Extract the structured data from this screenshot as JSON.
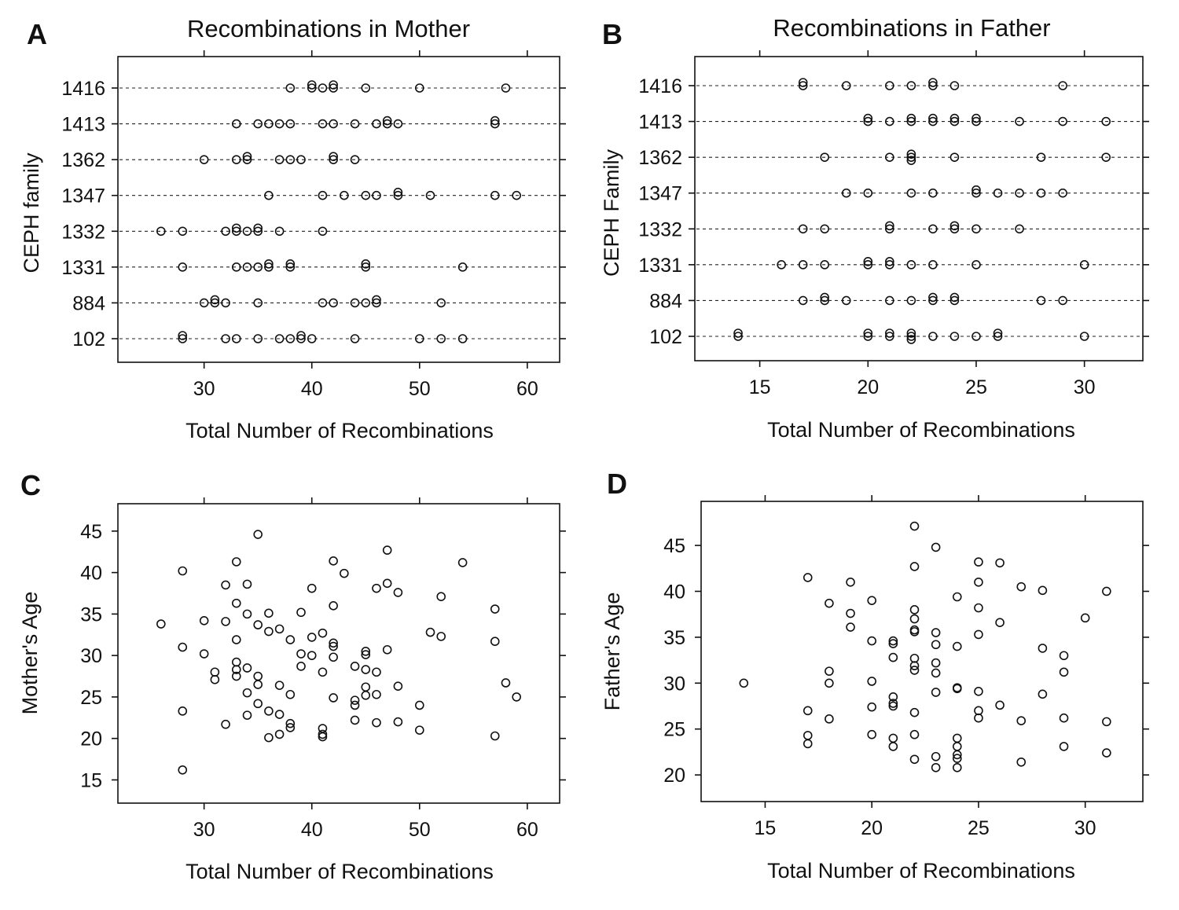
{
  "chart_data": [
    {
      "panel": "A",
      "type": "scatter",
      "title": "Recombinations in Mother",
      "xlabel": "Total Number of Recombinations",
      "ylabel": "CEPH family",
      "xlim": [
        22,
        63
      ],
      "xticks": [
        30,
        40,
        50,
        60
      ],
      "categories": [
        "1416",
        "1413",
        "1362",
        "1347",
        "1332",
        "1331",
        "884",
        "102"
      ],
      "grid": "dashed horizontal line per family",
      "points": [
        {
          "family": "1416",
          "x": [
            38,
            40,
            40,
            41,
            42,
            42,
            45,
            50,
            58
          ]
        },
        {
          "family": "1413",
          "x": [
            33,
            35,
            36,
            37,
            38,
            41,
            42,
            44,
            46,
            47,
            47,
            48,
            57,
            57
          ]
        },
        {
          "family": "1362",
          "x": [
            30,
            33,
            34,
            34,
            37,
            38,
            39,
            42,
            42,
            44
          ]
        },
        {
          "family": "1347",
          "x": [
            36,
            41,
            43,
            45,
            46,
            48,
            48,
            51,
            57,
            59
          ]
        },
        {
          "family": "1332",
          "x": [
            26,
            28,
            32,
            33,
            33,
            34,
            35,
            35,
            37,
            41
          ]
        },
        {
          "family": "1331",
          "x": [
            28,
            33,
            34,
            35,
            36,
            36,
            38,
            38,
            45,
            45,
            54
          ]
        },
        {
          "family": "884",
          "x": [
            30,
            31,
            31,
            32,
            35,
            41,
            42,
            44,
            45,
            46,
            46,
            52
          ]
        },
        {
          "family": "102",
          "x": [
            28,
            28,
            32,
            33,
            35,
            37,
            38,
            39,
            39,
            40,
            44,
            50,
            52,
            54
          ]
        }
      ]
    },
    {
      "panel": "B",
      "type": "scatter",
      "title": "Recombinations in Father",
      "xlabel": "Total Number of Recombinations",
      "ylabel": "CEPH Family",
      "xlim": [
        12,
        32.7
      ],
      "xticks": [
        15,
        20,
        25,
        30
      ],
      "categories": [
        "1416",
        "1413",
        "1362",
        "1347",
        "1332",
        "1331",
        "884",
        "102"
      ],
      "grid": "dashed horizontal line per family",
      "points": [
        {
          "family": "1416",
          "x": [
            17,
            17,
            19,
            21,
            22,
            23,
            23,
            24,
            29
          ]
        },
        {
          "family": "1413",
          "x": [
            20,
            20,
            21,
            22,
            22,
            23,
            23,
            24,
            24,
            25,
            25,
            27,
            29,
            31
          ]
        },
        {
          "family": "1362",
          "x": [
            18,
            21,
            22,
            22,
            22,
            24,
            28,
            31
          ]
        },
        {
          "family": "1347",
          "x": [
            19,
            20,
            22,
            23,
            25,
            25,
            26,
            27,
            28,
            29
          ]
        },
        {
          "family": "1332",
          "x": [
            17,
            18,
            21,
            21,
            23,
            24,
            24,
            25,
            27
          ]
        },
        {
          "family": "1331",
          "x": [
            16,
            17,
            18,
            20,
            20,
            21,
            21,
            22,
            23,
            25,
            30
          ]
        },
        {
          "family": "884",
          "x": [
            17,
            18,
            18,
            19,
            21,
            22,
            23,
            23,
            24,
            24,
            28,
            29
          ]
        },
        {
          "family": "102",
          "x": [
            14,
            14,
            20,
            20,
            21,
            21,
            22,
            22,
            22,
            23,
            24,
            25,
            26,
            26,
            30
          ]
        }
      ]
    },
    {
      "panel": "C",
      "type": "scatter",
      "xlabel": "Total Number of Recombinations",
      "ylabel": "Mother's Age",
      "xlim": [
        22,
        63
      ],
      "ylim": [
        12.2,
        48.3
      ],
      "xticks": [
        30,
        40,
        50,
        60
      ],
      "yticks": [
        15,
        20,
        25,
        30,
        35,
        40,
        45
      ],
      "points": [
        [
          26,
          33.8
        ],
        [
          28,
          40.2
        ],
        [
          28,
          31
        ],
        [
          28,
          23.3
        ],
        [
          28,
          16.2
        ],
        [
          30,
          34.2
        ],
        [
          30,
          30.2
        ],
        [
          31,
          28
        ],
        [
          31,
          27.1
        ],
        [
          32,
          38.5
        ],
        [
          32,
          34.1
        ],
        [
          32,
          21.7
        ],
        [
          33,
          41.3
        ],
        [
          33,
          36.3
        ],
        [
          33,
          31.9
        ],
        [
          33,
          29.2
        ],
        [
          33,
          28.3
        ],
        [
          33,
          27.5
        ],
        [
          34,
          38.6
        ],
        [
          34,
          35
        ],
        [
          34,
          28.5
        ],
        [
          34,
          25.5
        ],
        [
          34,
          22.8
        ],
        [
          35,
          44.6
        ],
        [
          35,
          33.7
        ],
        [
          35,
          27.5
        ],
        [
          35,
          26.5
        ],
        [
          35,
          24.2
        ],
        [
          36,
          35.1
        ],
        [
          36,
          32.9
        ],
        [
          36,
          23.3
        ],
        [
          36,
          20.1
        ],
        [
          37,
          33.2
        ],
        [
          37,
          26.4
        ],
        [
          37,
          22.9
        ],
        [
          37,
          20.5
        ],
        [
          38,
          31.9
        ],
        [
          38,
          25.3
        ],
        [
          38,
          21.8
        ],
        [
          38,
          21.3
        ],
        [
          39,
          35.2
        ],
        [
          39,
          30.2
        ],
        [
          39,
          28.7
        ],
        [
          40,
          38.1
        ],
        [
          40,
          32.2
        ],
        [
          40,
          30
        ],
        [
          41,
          32.7
        ],
        [
          41,
          28
        ],
        [
          41,
          21.2
        ],
        [
          41,
          20.5
        ],
        [
          41,
          20.2
        ],
        [
          42,
          41.4
        ],
        [
          42,
          36
        ],
        [
          42,
          31.5
        ],
        [
          42,
          31.1
        ],
        [
          42,
          29.8
        ],
        [
          42,
          24.9
        ],
        [
          43,
          39.9
        ],
        [
          44,
          28.7
        ],
        [
          44,
          24.6
        ],
        [
          44,
          24
        ],
        [
          44,
          22.2
        ],
        [
          45,
          30.5
        ],
        [
          45,
          30.1
        ],
        [
          45,
          28.3
        ],
        [
          45,
          26.2
        ],
        [
          45,
          25.2
        ],
        [
          46,
          38.1
        ],
        [
          46,
          28
        ],
        [
          46,
          25.3
        ],
        [
          46,
          21.9
        ],
        [
          47,
          42.7
        ],
        [
          47,
          38.7
        ],
        [
          47,
          30.7
        ],
        [
          48,
          37.6
        ],
        [
          48,
          26.3
        ],
        [
          48,
          22
        ],
        [
          50,
          24
        ],
        [
          50,
          21
        ],
        [
          51,
          32.8
        ],
        [
          52,
          37.1
        ],
        [
          52,
          32.3
        ],
        [
          54,
          41.2
        ],
        [
          57,
          35.6
        ],
        [
          57,
          31.7
        ],
        [
          57,
          20.3
        ],
        [
          58,
          26.7
        ],
        [
          59,
          25
        ]
      ]
    },
    {
      "panel": "D",
      "type": "scatter",
      "xlabel": "Total Number of Recombinations",
      "ylabel": "Father's Age",
      "xlim": [
        12,
        32.7
      ],
      "ylim": [
        17.1,
        49.8
      ],
      "xticks": [
        15,
        20,
        25,
        30
      ],
      "yticks": [
        20,
        25,
        30,
        35,
        40,
        45
      ],
      "points": [
        [
          14,
          30
        ],
        [
          17,
          41.5
        ],
        [
          17,
          27
        ],
        [
          17,
          24.3
        ],
        [
          17,
          23.4
        ],
        [
          18,
          38.7
        ],
        [
          18,
          31.3
        ],
        [
          18,
          30
        ],
        [
          18,
          26.1
        ],
        [
          19,
          41
        ],
        [
          19,
          37.6
        ],
        [
          19,
          36.1
        ],
        [
          20,
          39
        ],
        [
          20,
          34.6
        ],
        [
          20,
          30.2
        ],
        [
          20,
          27.4
        ],
        [
          20,
          24.4
        ],
        [
          21,
          34.6
        ],
        [
          21,
          34.3
        ],
        [
          21,
          32.8
        ],
        [
          21,
          28.5
        ],
        [
          21,
          27.8
        ],
        [
          21,
          27.5
        ],
        [
          21,
          24
        ],
        [
          21,
          23.1
        ],
        [
          22,
          47.1
        ],
        [
          22,
          42.7
        ],
        [
          22,
          38
        ],
        [
          22,
          37
        ],
        [
          22,
          35.8
        ],
        [
          22,
          35.6
        ],
        [
          22,
          32.7
        ],
        [
          22,
          31.9
        ],
        [
          22,
          31.4
        ],
        [
          22,
          26.8
        ],
        [
          22,
          24.4
        ],
        [
          22,
          21.7
        ],
        [
          23,
          44.8
        ],
        [
          23,
          35.5
        ],
        [
          23,
          34.2
        ],
        [
          23,
          32.2
        ],
        [
          23,
          31.1
        ],
        [
          23,
          29
        ],
        [
          23,
          22
        ],
        [
          23,
          20.8
        ],
        [
          24,
          39.4
        ],
        [
          24,
          34
        ],
        [
          24,
          29.5
        ],
        [
          24,
          29.4
        ],
        [
          24,
          24
        ],
        [
          24,
          23.1
        ],
        [
          24,
          22.2
        ],
        [
          24,
          21.8
        ],
        [
          24,
          20.8
        ],
        [
          25,
          43.2
        ],
        [
          25,
          41
        ],
        [
          25,
          38.2
        ],
        [
          25,
          35.3
        ],
        [
          25,
          29.1
        ],
        [
          25,
          27
        ],
        [
          25,
          26.2
        ],
        [
          26,
          43.1
        ],
        [
          26,
          36.6
        ],
        [
          26,
          27.6
        ],
        [
          27,
          40.5
        ],
        [
          27,
          25.9
        ],
        [
          27,
          21.4
        ],
        [
          28,
          40.1
        ],
        [
          28,
          33.8
        ],
        [
          28,
          28.8
        ],
        [
          29,
          33
        ],
        [
          29,
          31.2
        ],
        [
          29,
          26.2
        ],
        [
          29,
          23.1
        ],
        [
          30,
          37.1
        ],
        [
          31,
          40
        ],
        [
          31,
          25.8
        ],
        [
          31,
          22.4
        ]
      ]
    }
  ]
}
